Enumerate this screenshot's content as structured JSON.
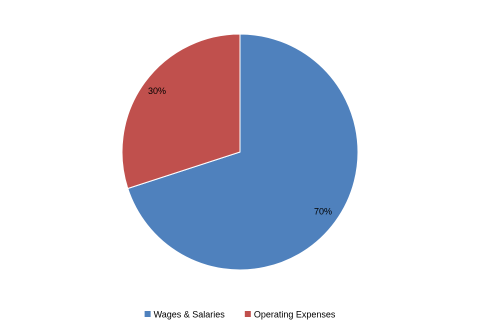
{
  "chart_data": {
    "type": "pie",
    "categories": [
      "Wages & Salaries",
      "Operating Expenses"
    ],
    "values": [
      70,
      30
    ],
    "value_labels": [
      "70%",
      "30%"
    ],
    "colors": [
      "#4f81bd",
      "#c0504d"
    ]
  }
}
